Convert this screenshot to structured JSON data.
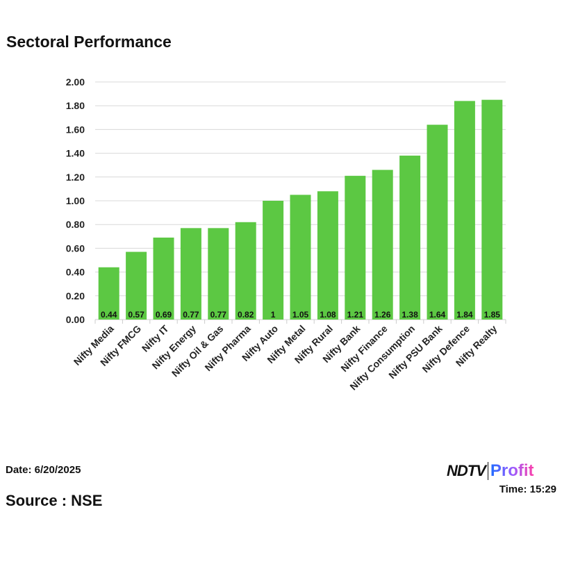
{
  "chart_data": {
    "type": "bar",
    "title": "Sectoral Performance",
    "categories": [
      "Nifty Media",
      "Nifty FMCG",
      "Nifty IT",
      "Nifty Energy",
      "Nifty Oil & Gas",
      "Nifty Pharma",
      "Nifty Auto",
      "Nifty Metal",
      "Nifty Rural",
      "Nifty Bank",
      "Nifty Finance",
      "Nifty Consumption",
      "Nifty PSU Bank",
      "Nifty Defence",
      "Nifty Realty"
    ],
    "values": [
      0.44,
      0.57,
      0.69,
      0.77,
      0.77,
      0.82,
      1,
      1.05,
      1.08,
      1.21,
      1.26,
      1.38,
      1.64,
      1.84,
      1.85
    ],
    "data_labels": [
      "0.44",
      "0.57",
      "0.69",
      "0.77",
      "0.77",
      "0.82",
      "1",
      "1.05",
      "1.08",
      "1.21",
      "1.26",
      "1.38",
      "1.64",
      "1.84",
      "1.85"
    ],
    "ylim": [
      0,
      2
    ],
    "yticks": [
      "0.00",
      "0.20",
      "0.40",
      "0.60",
      "0.80",
      "1.00",
      "1.20",
      "1.40",
      "1.60",
      "1.80",
      "2.00"
    ],
    "grid": true,
    "bar_color": "#5cc843",
    "xlabel": "",
    "ylabel": ""
  },
  "footer": {
    "date": "Date: 6/20/2025",
    "time": "Time: 15:29",
    "source": "Source : NSE",
    "logo_left": "NDTV",
    "logo_right": "Profit"
  }
}
